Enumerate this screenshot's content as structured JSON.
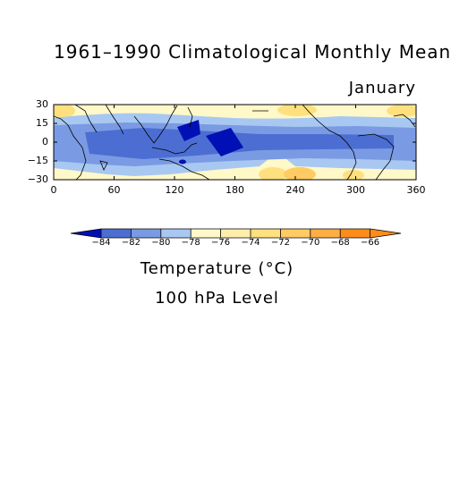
{
  "title": "1961–1990 Climatological Monthly Mean",
  "month": "January",
  "map": {
    "y_ticks": [
      "30",
      "15",
      "0",
      "−15",
      "−30"
    ],
    "x_ticks": [
      "0",
      "60",
      "120",
      "180",
      "240",
      "300",
      "360"
    ]
  },
  "colorbar": {
    "labels": [
      "−84",
      "−82",
      "−80",
      "−78",
      "−76",
      "−74",
      "−72",
      "−70",
      "−68",
      "−66"
    ],
    "colors": [
      "#0010b4",
      "#4c6ed2",
      "#7a9be3",
      "#a8c8f2",
      "#fff8c8",
      "#ffeeaa",
      "#ffe07e",
      "#ffcb62",
      "#ffad44",
      "#ff8c1a"
    ]
  },
  "caption": {
    "variable": "Temperature (°C)",
    "level": "100 hPa Level"
  }
}
